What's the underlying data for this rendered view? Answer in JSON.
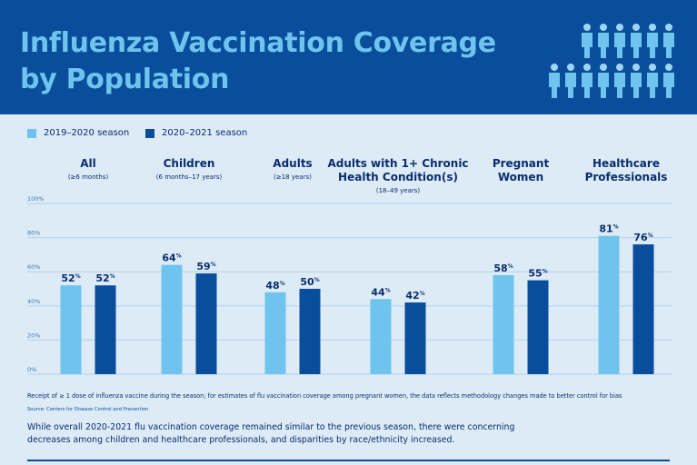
{
  "title_line1": "Influenza Vaccination Coverage",
  "title_line2": "by Population",
  "legend": [
    {
      "label": "2019–2020 season",
      "color": "#6ec4ec"
    },
    {
      "label": "2020–2021 season",
      "color": "#0a4d9c"
    }
  ],
  "groups": [
    {
      "name": "All",
      "name2": "",
      "sub": "(≥6 months)"
    },
    {
      "name": "Children",
      "name2": "",
      "sub": "(6 months–17 years)"
    },
    {
      "name": "Adults",
      "name2": "",
      "sub": "(≥18 years)"
    },
    {
      "name": "Adults with 1+ Chronic",
      "name2": "Health Condition(s)",
      "sub": "(18–49 years)"
    },
    {
      "name": "Pregnant",
      "name2": "Women",
      "sub": ""
    },
    {
      "name": "Healthcare",
      "name2": "Professionals",
      "sub": ""
    }
  ],
  "chart_data": {
    "type": "bar",
    "categories": [
      "All",
      "Children",
      "Adults",
      "Adults with 1+ Chronic Health Condition(s)",
      "Pregnant Women",
      "Healthcare Professionals"
    ],
    "series": [
      {
        "name": "2019–2020 season",
        "values": [
          52,
          64,
          48,
          44,
          58,
          81
        ],
        "color": "#6ec4ec"
      },
      {
        "name": "2020–2021 season",
        "values": [
          52,
          59,
          50,
          42,
          55,
          76
        ],
        "color": "#0a4d9c"
      }
    ],
    "ylim": [
      0,
      100
    ],
    "yticks": [
      "0%",
      "20%",
      "40%",
      "60%",
      "80%",
      "100%"
    ],
    "value_suffix": "%",
    "grid": true
  },
  "footnote": "Receipt of ≥ 1 dose of influenza vaccine during the season; for estimates of flu vaccination coverage among pregnant women, the data reflects methodology changes made to better control for bias",
  "source": "Source: Centers for Disease Control and Prevention",
  "summary": "While overall 2020-2021 flu vaccination coverage remained similar to the previous season, there were concerning decreases among children and healthcare professionals, and disparities by race/ethnicity increased.",
  "colors": {
    "banner": "#0a4d9c",
    "title": "#6ec4ec",
    "background": "#dcebf6",
    "text": "#0a2d6e",
    "grid": "#b4d2ea"
  },
  "icons": [
    "person-icon"
  ]
}
